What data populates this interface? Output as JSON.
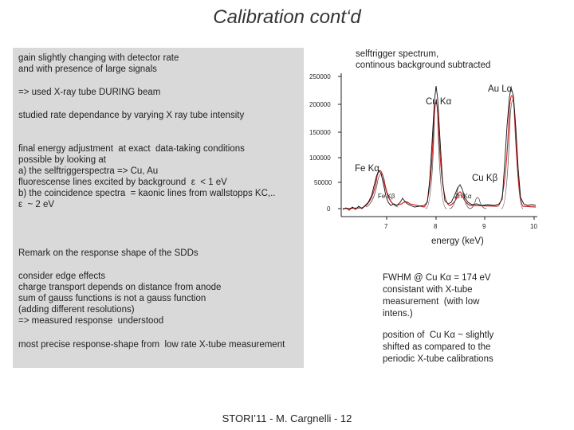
{
  "slide": {
    "title": "Calibration cont‘d",
    "footer": "STORI’11 - M. Cargnelli - 12"
  },
  "panel": {
    "p1": "gain slightly changing with detector rate\nand with presence of large signals",
    "p2": "=> used X-ray tube DURING beam",
    "p3": "studied rate dependance by varying X ray tube intensity",
    "p4": "final energy adjustment  at exact  data-taking conditions\npossible by looking at\na) the selftriggerspectra => Cu, Au\nfluorescense lines excited by background  ε  < 1 eV\nb) the coincidence spectra  = kaonic lines from wallstopps KC,..\nε  ~ 2 eV",
    "p5": "Remark on the response shape of the SDDs",
    "p6": "consider edge effects\ncharge transport depends on distance from anode\nsum of gauss functions is not a gauss function\n(adding different resolutions)\n=> measured response  understood",
    "p7": "most precise response-shape from  low rate X-tube measurement"
  },
  "spectrum": {
    "caption": "selftrigger spectrum,\ncontinous background subtracted",
    "y_ticks": [
      "250000",
      "200000",
      "150000",
      "100000",
      "50000",
      "0"
    ],
    "x_ticks": [
      "7",
      "8",
      "9",
      "10"
    ],
    "xlabel": "energy (keV)",
    "peaks": {
      "au": "Au Lα",
      "cu_ka": "Cu Kα",
      "fe_ka": "Fe Kα",
      "cu_kb": "Cu Kβ",
      "fe_kb": "Fe Kβ",
      "zn_ka": "Zn Kα"
    },
    "colors": {
      "data": "#111111",
      "fit": "#cc2222",
      "component": "#555555"
    }
  },
  "notes": {
    "fwhm": "FWHM @ Cu Kα = 174 eV\nconsistant with X-tube\nmeasurement  (with low\nintens.)",
    "position": "position of  Cu Kα ~ slightly\nshifted as compared to the\nperiodic X-tube calibrations"
  }
}
